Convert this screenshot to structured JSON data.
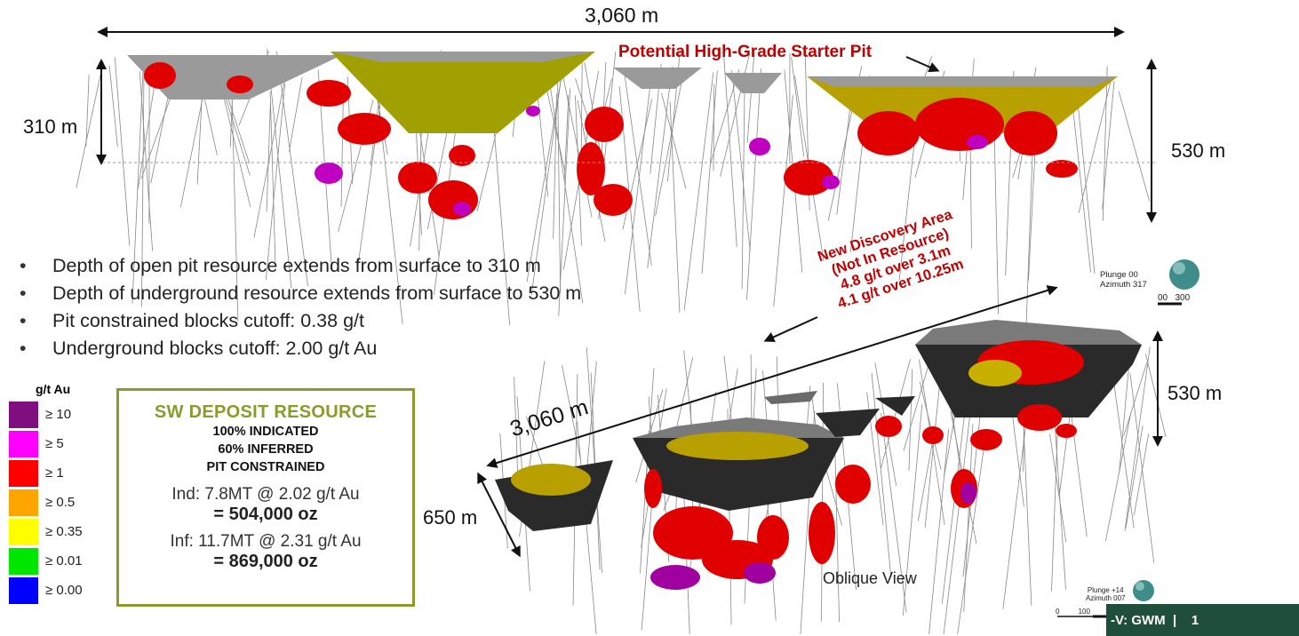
{
  "top_section": {
    "width_label": "3,060 m",
    "left_depth_label": "310 m",
    "right_depth_label": "530 m",
    "starter_pit_label": "Potential High-Grade Starter Pit"
  },
  "bullets": [
    "Depth of open pit resource extends from surface to 310 m",
    "Depth of underground resource extends from surface to 530 m",
    "Pit constrained blocks cutoff: 0.38 g/t",
    "Underground blocks cutoff: 2.00 g/t Au"
  ],
  "legend": {
    "title": "g/t Au",
    "items": [
      {
        "label": "≥ 10",
        "color": "#7f0f7e"
      },
      {
        "label": "≥ 5",
        "color": "#ff00ff"
      },
      {
        "label": "≥ 1",
        "color": "#ff0000"
      },
      {
        "label": "≥ 0.5",
        "color": "#ffa500"
      },
      {
        "label": "≥ 0.35",
        "color": "#ffff00"
      },
      {
        "label": "≥ 0.01",
        "color": "#00e600"
      },
      {
        "label": "≥ 0.00",
        "color": "#0000ff"
      }
    ]
  },
  "resource_box": {
    "title": "SW DEPOSIT RESOURCE",
    "sub1": "100% INDICATED",
    "sub2": "60% INFERRED",
    "sub3": "PIT CONSTRAINED",
    "ind_line": "Ind: 7.8MT @ 2.02 g/t Au",
    "ind_oz": "= 504,000 oz",
    "inf_line": "Inf: 11.7MT @ 2.31 g/t Au",
    "inf_oz": "= 869,000 oz"
  },
  "discovery": {
    "line1": "New Discovery Area",
    "line2": "(Not In Resource)",
    "line3": "4.8 g/t over 3.1m",
    "line4": "4.1 g/t over 10.25m"
  },
  "oblique_section": {
    "width_label": "3,060 m",
    "depth_label": "650 m",
    "right_depth_label": "530 m",
    "view_label": "Oblique View"
  },
  "orientation_top": {
    "plunge": "Plunge 00",
    "azimuth": "Azimuth 317",
    "scale": "00   300"
  },
  "orientation_bottom": {
    "plunge": "Plunge +14",
    "azimuth": "Azimuth 007",
    "scale_ticks": [
      "0",
      "100",
      "200",
      "300"
    ]
  },
  "footer": {
    "text": "-V: GWM  |    1"
  }
}
